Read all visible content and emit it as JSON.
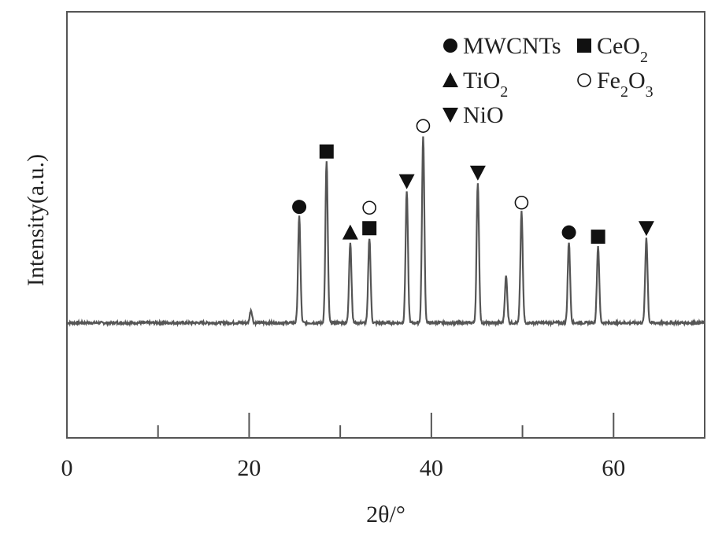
{
  "chart_data": {
    "type": "line",
    "xlabel": "2θ/°",
    "ylabel": "Intensity(a.u.)",
    "xlim": [
      0,
      70
    ],
    "ylim": [
      0,
      1
    ],
    "grid": false,
    "legend_position": "top-right",
    "x_ticks": [
      "0",
      "20",
      "40",
      "60"
    ],
    "x_tick_values": [
      0,
      20,
      40,
      60
    ],
    "x_minor_ticks": [
      10,
      30,
      50
    ],
    "line_color": "#555555",
    "baseline": 0.27,
    "peaks": [
      {
        "x": 20.2,
        "y": 0.3,
        "marker": null
      },
      {
        "x": 25.5,
        "y": 0.52,
        "marker": "MWCNTs"
      },
      {
        "x": 28.5,
        "y": 0.65,
        "marker": "CeO2"
      },
      {
        "x": 31.1,
        "y": 0.46,
        "marker": "TiO2"
      },
      {
        "x": 33.2,
        "y": 0.47,
        "marker": "CeO2"
      },
      {
        "x": 33.2,
        "y": 0.47,
        "marker": "Fe2O3",
        "stacked": true
      },
      {
        "x": 37.3,
        "y": 0.58,
        "marker": "NiO"
      },
      {
        "x": 39.1,
        "y": 0.71,
        "marker": "Fe2O3"
      },
      {
        "x": 45.1,
        "y": 0.6,
        "marker": "NiO"
      },
      {
        "x": 48.2,
        "y": 0.38,
        "marker": null
      },
      {
        "x": 49.9,
        "y": 0.53,
        "marker": "Fe2O3"
      },
      {
        "x": 55.1,
        "y": 0.46,
        "marker": "MWCNTs"
      },
      {
        "x": 58.3,
        "y": 0.45,
        "marker": "CeO2"
      },
      {
        "x": 63.6,
        "y": 0.47,
        "marker": "NiO"
      }
    ],
    "legend": [
      {
        "key": "MWCNTs",
        "symbol": "filled-circle",
        "label": "MWCNTs",
        "sub": null
      },
      {
        "key": "CeO2",
        "symbol": "filled-square",
        "label": "CeO",
        "sub": "2"
      },
      {
        "key": "TiO2",
        "symbol": "filled-triangle-up",
        "label": "TiO",
        "sub": "2"
      },
      {
        "key": "Fe2O3",
        "symbol": "open-circle",
        "label": "Fe",
        "sub": "2",
        "label2": "O",
        "sub2": "3"
      },
      {
        "key": "NiO",
        "symbol": "filled-triangle-down",
        "label": "NiO",
        "sub": null
      }
    ]
  }
}
